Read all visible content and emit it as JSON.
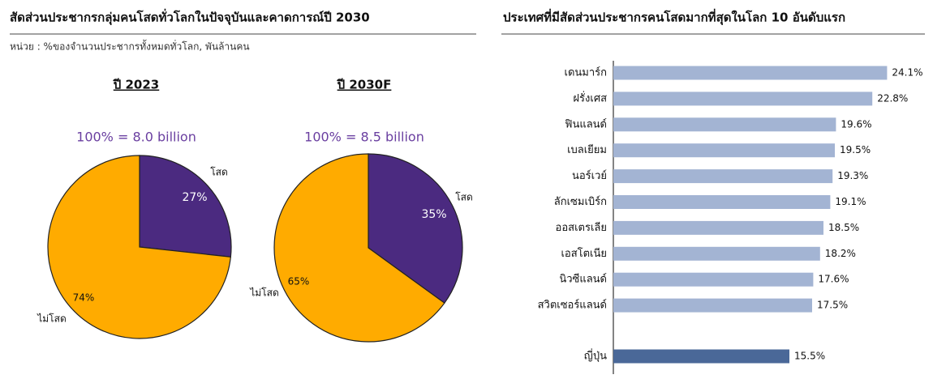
{
  "panel": {
    "title": "สัดส่วนประชากรกลุ่มคนโสดทั่วโลกในปัจจุบันและคาดการณ์ปี 2030",
    "subtitle": "หน่วย : %ของจำนวนประชากรทั้งหมดทั่วโลก, พันล้านคน"
  },
  "chart_data": [
    {
      "type": "pie",
      "title": "ปี 2023",
      "subtitle": "100% = 8.0 billion",
      "categories": [
        "โสด",
        "ไม่โสด"
      ],
      "values": [
        27,
        74
      ],
      "value_labels": [
        "27%",
        "74%"
      ],
      "colors": [
        "#4b2a80",
        "#ffab00"
      ]
    },
    {
      "type": "pie",
      "title": "ปี 2030F",
      "subtitle": "100% = 8.5 billion",
      "categories": [
        "โสด",
        "ไม่โสด"
      ],
      "values": [
        35,
        65
      ],
      "value_labels": [
        "35%",
        "65%"
      ],
      "colors": [
        "#4b2a80",
        "#ffab00"
      ]
    },
    {
      "type": "barh",
      "title": "ประเทศที่มีสัดส่วนประชากรคนโสดมากที่สุดในโลก 10 อันดับแรก",
      "categories": [
        "เดนมาร์ก",
        "ฝรั่งเศส",
        "ฟินแลนด์",
        "เบลเยียม",
        "นอร์เวย์",
        "ลักเซมเบิร์ก",
        "ออสเตรเลีย",
        "เอสโตเนีย",
        "นิวซีแลนด์",
        "สวิตเซอร์แลนด์",
        "ญี่ปุ่น"
      ],
      "values": [
        24.1,
        22.8,
        19.6,
        19.5,
        19.3,
        19.1,
        18.5,
        18.2,
        17.6,
        17.5,
        15.5
      ],
      "value_labels": [
        "24.1%",
        "22.8%",
        "19.6%",
        "19.5%",
        "19.3%",
        "19.1%",
        "18.5%",
        "18.2%",
        "17.6%",
        "17.5%",
        "15.5%"
      ],
      "colors": [
        "#a3b4d3",
        "#a3b4d3",
        "#a3b4d3",
        "#a3b4d3",
        "#a3b4d3",
        "#a3b4d3",
        "#a3b4d3",
        "#a3b4d3",
        "#a3b4d3",
        "#a3b4d3",
        "#4a6898"
      ],
      "xlim": [
        0,
        25
      ]
    }
  ]
}
